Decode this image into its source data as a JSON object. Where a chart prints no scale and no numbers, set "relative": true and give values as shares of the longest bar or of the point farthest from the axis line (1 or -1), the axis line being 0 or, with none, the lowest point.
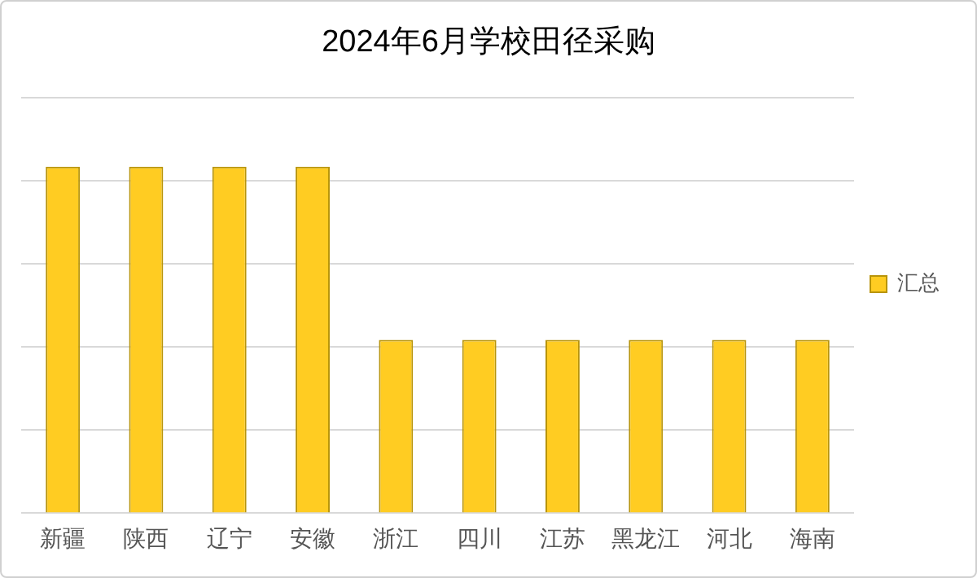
{
  "chart_data": {
    "type": "bar",
    "title": "2024年6月学校田径采购",
    "categories": [
      "新疆",
      "陕西",
      "辽宁",
      "安徽",
      "浙江",
      "四川",
      "江苏",
      "黑龙江",
      "河北",
      "海南"
    ],
    "series": [
      {
        "name": "汇总",
        "color": "#ffcc22",
        "values": [
          1,
          1,
          1,
          1,
          0.5,
          0.5,
          0.5,
          0.5,
          0.5,
          0.5
        ]
      }
    ],
    "relative": true,
    "grid": "y",
    "legend": "right"
  }
}
